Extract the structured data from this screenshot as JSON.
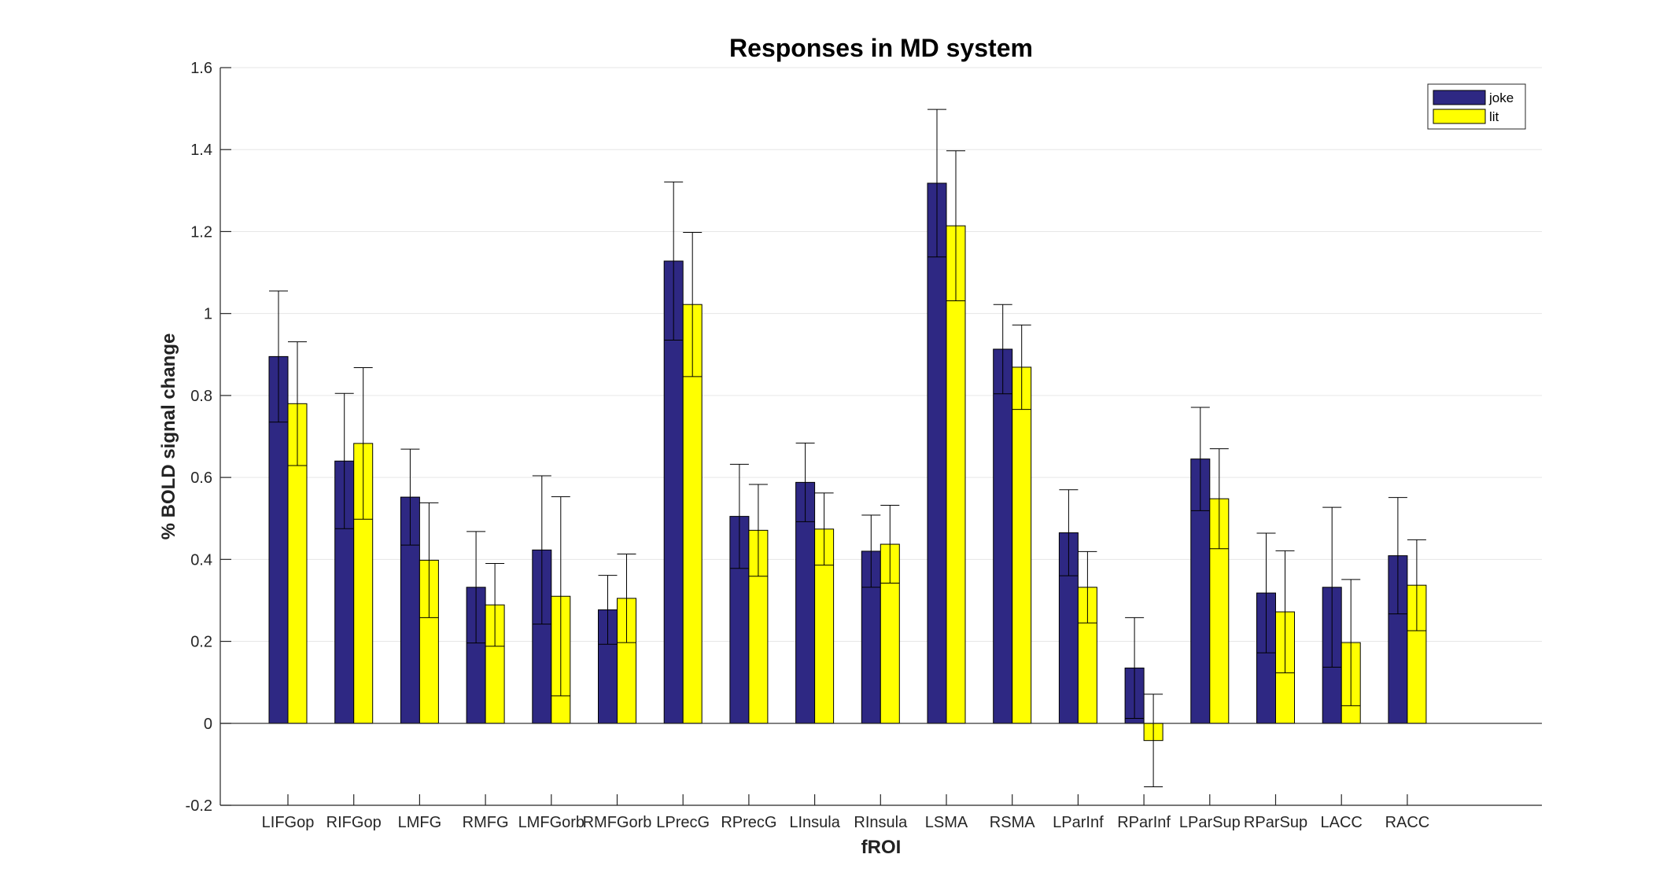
{
  "chart_data": {
    "type": "bar",
    "title": "Responses in MD system",
    "xlabel": "fROI",
    "ylabel": "% BOLD signal change",
    "ylim": [
      -0.2,
      1.6
    ],
    "yticks": [
      "-0.2",
      "0",
      "0.2",
      "0.4",
      "0.6",
      "0.8",
      "1",
      "1.2",
      "1.4",
      "1.6"
    ],
    "grid": "horizontal",
    "legend_position": "top-right",
    "categories": [
      "LIFGop",
      "RIFGop",
      "LMFG",
      "RMFG",
      "LMFGorb",
      "RMFGorb",
      "LPrecG",
      "RPrecG",
      "LInsula",
      "RInsula",
      "LSMA",
      "RSMA",
      "LParInf",
      "RParInf",
      "LParSup",
      "RParSup",
      "LACC",
      "RACC"
    ],
    "series": [
      {
        "name": "joke",
        "color": "#2E2883",
        "values": [
          0.895,
          0.64,
          0.552,
          0.332,
          0.423,
          0.277,
          1.128,
          0.505,
          0.588,
          0.42,
          1.318,
          0.913,
          0.465,
          0.135,
          0.645,
          0.318,
          0.332,
          0.409
        ],
        "err": [
          0.16,
          0.165,
          0.117,
          0.136,
          0.181,
          0.084,
          0.193,
          0.127,
          0.096,
          0.088,
          0.18,
          0.109,
          0.105,
          0.123,
          0.126,
          0.146,
          0.195,
          0.142
        ]
      },
      {
        "name": "lit",
        "color": "#FFFF00",
        "values": [
          0.78,
          0.683,
          0.398,
          0.289,
          0.31,
          0.305,
          1.022,
          0.471,
          0.474,
          0.437,
          1.214,
          0.869,
          0.332,
          -0.042,
          0.548,
          0.272,
          0.197,
          0.337
        ],
        "err": [
          0.151,
          0.185,
          0.14,
          0.101,
          0.243,
          0.108,
          0.176,
          0.112,
          0.088,
          0.095,
          0.183,
          0.103,
          0.087,
          0.113,
          0.122,
          0.149,
          0.154,
          0.111
        ]
      }
    ]
  }
}
